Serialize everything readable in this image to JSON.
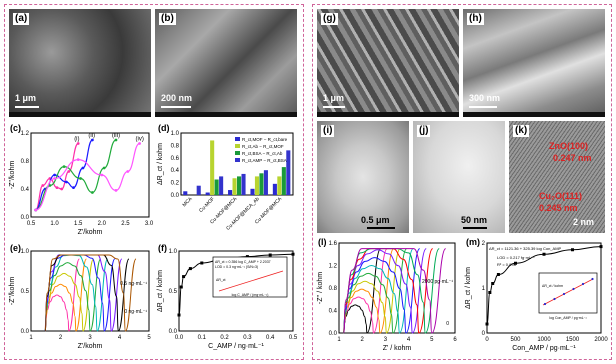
{
  "colors": {
    "border": "#d0649a",
    "series_c": [
      "#ff2fa8",
      "#1a1aff",
      "#1faa3a",
      "#ff55ff"
    ],
    "bars": [
      "#2a2ad0",
      "#b8d430",
      "#1a9a3a",
      "#3333cc"
    ]
  },
  "panels": {
    "a": {
      "label": "(a)",
      "scale": "1 μm"
    },
    "b": {
      "label": "(b)",
      "scale": "200 nm"
    },
    "g": {
      "label": "(g)",
      "scale": "1 μm"
    },
    "h": {
      "label": "(h)",
      "scale": "300 nm"
    },
    "i": {
      "label": "(i)",
      "scale": "0.5 μm"
    },
    "j": {
      "label": "(j)",
      "scale": "50 nm"
    },
    "k": {
      "label": "(k)",
      "scale": "2 nm",
      "ann1": "ZnO(100)",
      "ann2": "0.247 nm",
      "ann3": "Cu₂O(111)",
      "ann4": "0.245 nm"
    }
  },
  "chart_data": [
    {
      "panel": "(c)",
      "type": "line",
      "xlabel": "Z'/kohm",
      "ylabel": "-Z''/kohm",
      "xlim": [
        0.5,
        3.0
      ],
      "ylim": [
        0,
        1.2
      ],
      "xticks": [
        "0.5",
        "1.0",
        "1.5",
        "2.0",
        "2.5",
        "3.0"
      ],
      "yticks": [
        "0.0",
        "0.4",
        "0.8",
        "1.2"
      ],
      "series": [
        {
          "name": "(i)",
          "x": [
            0.6,
            0.75,
            0.9,
            1.05,
            1.15,
            1.3,
            1.5
          ],
          "y": [
            0.1,
            0.45,
            0.55,
            0.42,
            0.4,
            0.65,
            1.05
          ]
        },
        {
          "name": "(ii)",
          "x": [
            0.6,
            0.8,
            1.0,
            1.25,
            1.4,
            1.6,
            1.8
          ],
          "y": [
            0.1,
            0.4,
            0.6,
            0.5,
            0.42,
            0.7,
            1.1
          ]
        },
        {
          "name": "(iii)",
          "x": [
            0.6,
            0.9,
            1.2,
            1.55,
            1.8,
            2.05,
            2.3
          ],
          "y": [
            0.1,
            0.45,
            0.72,
            0.55,
            0.35,
            0.7,
            1.1
          ]
        },
        {
          "name": "(iv)",
          "x": [
            0.6,
            1.0,
            1.5,
            2.0,
            2.3,
            2.55,
            2.8
          ],
          "y": [
            0.1,
            0.55,
            0.82,
            0.6,
            0.38,
            0.65,
            1.05
          ]
        }
      ]
    },
    {
      "panel": "(d)",
      "type": "bar",
      "ylabel": "ΔR_ct / kohm",
      "ylim": [
        0,
        1.0
      ],
      "yticks": [
        "0.0",
        "0.2",
        "0.4",
        "0.6",
        "0.8",
        "1.0"
      ],
      "categories": [
        "MCA",
        "Cu-MOF",
        "Cu-MOF@MCA",
        "Cu-MOF@MCA_Ab",
        "Cu-MOF@MCA"
      ],
      "legend": [
        "R_ct,MOF − R_ct,bare",
        "R_ct,Ab − R_ct,MOF",
        "R_ct,BSA − R_ct,Ab",
        "R_ct,AMP − R_ct,BSA"
      ],
      "series": [
        {
          "values": [
            0.06,
            0.04,
            0.08,
            0.1,
            0.18
          ]
        },
        {
          "values": [
            0.0,
            0.88,
            0.27,
            0.3,
            0.3
          ]
        },
        {
          "values": [
            0.0,
            0.25,
            0.3,
            0.35,
            0.45
          ]
        },
        {
          "values": [
            0.15,
            0.3,
            0.34,
            0.4,
            0.72
          ]
        }
      ]
    },
    {
      "panel": "(e)",
      "type": "line",
      "xlabel": "Z'/kohm",
      "ylabel": "-Z''/kohm",
      "xlim": [
        0,
        5
      ],
      "ylim": [
        0,
        1.0
      ],
      "xticks": [
        "1",
        "2",
        "3",
        "4",
        "5"
      ],
      "yticks": [
        "0.0",
        "0.5",
        "1.0"
      ],
      "annotations": [
        "0.5 ng·mL⁻¹",
        "0 ng·mL⁻¹"
      ]
    },
    {
      "panel": "(f)",
      "type": "line",
      "xlabel": "C_AMP / ng·mL⁻¹",
      "ylabel": "ΔR_ct / kohm",
      "xlim": [
        0.0,
        0.5
      ],
      "ylim": [
        0.0,
        1.0
      ],
      "xticks": [
        "0.0",
        "0.1",
        "0.2",
        "0.3",
        "0.4",
        "0.5"
      ],
      "yticks": [
        "0.0",
        "0.5",
        "1.0"
      ],
      "x": [
        0.0,
        0.01,
        0.02,
        0.05,
        0.1,
        0.2,
        0.3,
        0.4,
        0.5
      ],
      "y": [
        0.2,
        0.55,
        0.68,
        0.78,
        0.85,
        0.9,
        0.93,
        0.95,
        0.96
      ],
      "inset": {
        "eq1": "ΔR_ct = 0.356 log C_AMP + 2.2037",
        "eq2": "LOD = 0.3 ng·mL⁻¹ (S/N=3)",
        "xlabel": "log C_AMP / (mg·mL⁻¹)",
        "ylabel": "ΔR_ct"
      }
    },
    {
      "panel": "(l)",
      "type": "line",
      "xlabel": "Z' / kohm",
      "ylabel": "-Z'' / kohm",
      "xlim": [
        1,
        6
      ],
      "ylim": [
        0.0,
        1.6
      ],
      "xticks": [
        "1",
        "2",
        "3",
        "4",
        "5",
        "6"
      ],
      "yticks": [
        "0.0",
        "0.4",
        "0.8",
        "1.2",
        "1.6"
      ],
      "annotations": [
        "2000 pg·mL⁻¹",
        "0"
      ]
    },
    {
      "panel": "(m)",
      "type": "line",
      "xlabel": "Con_AMP / pg·mL⁻¹",
      "ylabel": "ΔR_ct / kohm",
      "xlim": [
        0,
        2000
      ],
      "ylim": [
        0,
        2
      ],
      "xticks": [
        "0",
        "500",
        "1000",
        "1500",
        "2000"
      ],
      "yticks": [
        "0",
        "1",
        "2"
      ],
      "x": [
        0,
        50,
        100,
        200,
        500,
        1000,
        1500,
        2000
      ],
      "y": [
        0.2,
        0.9,
        1.1,
        1.3,
        1.55,
        1.75,
        1.85,
        1.92
      ],
      "inset": {
        "eq1": "ΔR_ct = 1121.36 + 325.39 log Con_AMP",
        "eq2": "LOD = 0.217 fg·mL⁻¹",
        "eq3": "R² = 0.998",
        "xlabel": "log Con_AMP / pg·mL⁻¹",
        "ylabel": "ΔR_ct / kohm"
      }
    }
  ]
}
